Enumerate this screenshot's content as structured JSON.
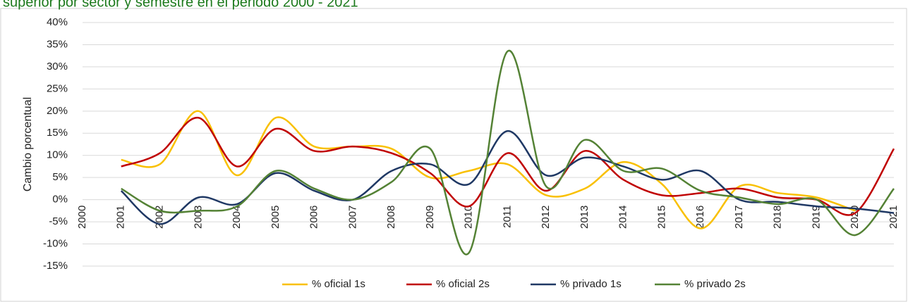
{
  "chart_data": {
    "type": "line",
    "title": "superior por sector y semestre en el periodo 2000 - 2021",
    "y_label": "Cambio porcentual",
    "categories": [
      "2000",
      "2001",
      "2002",
      "2003",
      "2004",
      "2005",
      "2006",
      "2007",
      "2008",
      "2009",
      "2010",
      "2011",
      "2012",
      "2013",
      "2014",
      "2015",
      "2016",
      "2017",
      "2018",
      "2019",
      "2020",
      "2021"
    ],
    "ylim": [
      -15,
      40
    ],
    "yticks": [
      {
        "value": -15,
        "label": "-15%"
      },
      {
        "value": -10,
        "label": "-10%"
      },
      {
        "value": -5,
        "label": "-5%"
      },
      {
        "value": 0,
        "label": "0%"
      },
      {
        "value": 5,
        "label": "5%"
      },
      {
        "value": 10,
        "label": "10%"
      },
      {
        "value": 15,
        "label": "15%"
      },
      {
        "value": 20,
        "label": "20%"
      },
      {
        "value": 25,
        "label": "25%"
      },
      {
        "value": 30,
        "label": "30%"
      },
      {
        "value": 35,
        "label": "35%"
      },
      {
        "value": 40,
        "label": "40%"
      }
    ],
    "grid": true,
    "smooth": true,
    "legend": "bottom",
    "series": [
      {
        "name": "% oficial 1s",
        "color": "#f9c000",
        "values": [
          null,
          9,
          8,
          20,
          5.5,
          18.5,
          12,
          12,
          11.5,
          5,
          6.5,
          8,
          1,
          2.5,
          8.5,
          3.5,
          -6.5,
          3,
          1.5,
          0.5,
          -2.5,
          null
        ]
      },
      {
        "name": "% oficial 2s",
        "color": "#c00000",
        "values": [
          null,
          7.5,
          10.5,
          18.5,
          7.5,
          16,
          11,
          12,
          10.5,
          6,
          -1.5,
          10.5,
          2,
          11,
          4.5,
          1,
          1.5,
          2.5,
          0.5,
          0,
          -3,
          11.5
        ]
      },
      {
        "name": "% privado 1s",
        "color": "#1f3864",
        "values": [
          null,
          2,
          -5.5,
          0.5,
          -1,
          6,
          2,
          0,
          6.5,
          8,
          3.5,
          15.5,
          5.5,
          9.5,
          7.5,
          4.5,
          6.5,
          0,
          -0.5,
          -1.5,
          -2,
          -3
        ]
      },
      {
        "name": "% privado 2s",
        "color": "#548235",
        "values": [
          null,
          2.5,
          -2.5,
          -2.5,
          -1.5,
          6.5,
          2.5,
          0,
          4,
          11.5,
          -12,
          33.5,
          3,
          13.5,
          6.5,
          7,
          2,
          0.5,
          -1,
          0,
          -8,
          2.5
        ]
      }
    ]
  }
}
